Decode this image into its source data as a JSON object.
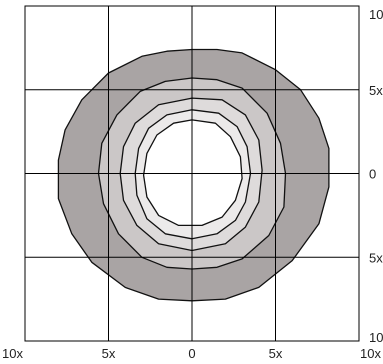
{
  "chart_data": {
    "type": "contour",
    "x_ticks": [
      "10x",
      "5x",
      "0",
      "5x",
      "10x"
    ],
    "y_ticks": [
      "10",
      "5x",
      "0",
      "5x",
      "10"
    ],
    "x_tick_values": [
      -10,
      -5,
      0,
      5,
      10
    ],
    "y_tick_values": [
      10,
      5,
      0,
      -5,
      -10
    ],
    "xlim": [
      -10,
      10
    ],
    "ylim": [
      -10,
      10
    ],
    "grid": true,
    "legend": "none",
    "contours": [
      {
        "level": 1,
        "fill": "#a9a4a4",
        "points": [
          [
            0,
            7.4
          ],
          [
            1.5,
            7.4
          ],
          [
            3,
            7.2
          ],
          [
            5,
            6.2
          ],
          [
            6.5,
            5.0
          ],
          [
            7.6,
            3.3
          ],
          [
            8.2,
            1.5
          ],
          [
            8.2,
            -0.8
          ],
          [
            7.6,
            -3.0
          ],
          [
            6.0,
            -5.2
          ],
          [
            4.0,
            -6.8
          ],
          [
            2.0,
            -7.5
          ],
          [
            0,
            -7.6
          ],
          [
            -2.0,
            -7.5
          ],
          [
            -4.0,
            -6.8
          ],
          [
            -6.0,
            -5.3
          ],
          [
            -7.2,
            -3.6
          ],
          [
            -8.0,
            -1.5
          ],
          [
            -8.0,
            0.8
          ],
          [
            -7.6,
            2.6
          ],
          [
            -6.6,
            4.4
          ],
          [
            -5.0,
            6.0
          ],
          [
            -3.0,
            7.0
          ],
          [
            -1.5,
            7.3
          ]
        ]
      },
      {
        "level": 2,
        "fill": "#cbc7c7",
        "points": [
          [
            0,
            5.7
          ],
          [
            1.5,
            5.6
          ],
          [
            3.0,
            5.1
          ],
          [
            4.5,
            3.6
          ],
          [
            5.3,
            1.8
          ],
          [
            5.6,
            0
          ],
          [
            5.5,
            -2.0
          ],
          [
            4.6,
            -3.7
          ],
          [
            3.0,
            -5.1
          ],
          [
            1.5,
            -5.6
          ],
          [
            0,
            -5.7
          ],
          [
            -1.5,
            -5.6
          ],
          [
            -3.0,
            -5.0
          ],
          [
            -4.4,
            -3.6
          ],
          [
            -5.3,
            -1.8
          ],
          [
            -5.6,
            0
          ],
          [
            -5.4,
            1.8
          ],
          [
            -4.5,
            3.5
          ],
          [
            -3.1,
            4.9
          ],
          [
            -1.6,
            5.5
          ]
        ]
      },
      {
        "level": 3,
        "fill": "#dedbdb",
        "points": [
          [
            0,
            4.5
          ],
          [
            1.8,
            4.4
          ],
          [
            3.2,
            3.5
          ],
          [
            4.0,
            2.0
          ],
          [
            4.2,
            0.2
          ],
          [
            4.0,
            -1.7
          ],
          [
            3.2,
            -3.2
          ],
          [
            2.0,
            -4.2
          ],
          [
            0,
            -4.6
          ],
          [
            -2.0,
            -4.2
          ],
          [
            -3.3,
            -3.1
          ],
          [
            -4.1,
            -1.6
          ],
          [
            -4.3,
            0
          ],
          [
            -4.1,
            1.6
          ],
          [
            -3.4,
            3.0
          ],
          [
            -2.0,
            4.1
          ]
        ]
      },
      {
        "level": 4,
        "fill": "#eceaea",
        "points": [
          [
            0,
            3.8
          ],
          [
            1.6,
            3.6
          ],
          [
            2.7,
            2.8
          ],
          [
            3.3,
            1.6
          ],
          [
            3.5,
            0
          ],
          [
            3.2,
            -1.7
          ],
          [
            2.6,
            -2.8
          ],
          [
            1.5,
            -3.6
          ],
          [
            0,
            -3.9
          ],
          [
            -1.6,
            -3.6
          ],
          [
            -2.7,
            -2.7
          ],
          [
            -3.3,
            -1.3
          ],
          [
            -3.4,
            0
          ],
          [
            -3.2,
            1.5
          ],
          [
            -2.6,
            2.7
          ],
          [
            -1.5,
            3.5
          ]
        ]
      },
      {
        "level": 5,
        "fill": "#ffffff",
        "points": [
          [
            0,
            3.2
          ],
          [
            1.4,
            3.0
          ],
          [
            2.3,
            2.2
          ],
          [
            2.9,
            1.0
          ],
          [
            3.0,
            -0.3
          ],
          [
            2.6,
            -1.6
          ],
          [
            1.8,
            -2.6
          ],
          [
            0.6,
            -3.1
          ],
          [
            -0.8,
            -3.1
          ],
          [
            -2.0,
            -2.5
          ],
          [
            -2.7,
            -1.4
          ],
          [
            -2.9,
            -0.1
          ],
          [
            -2.7,
            1.2
          ],
          [
            -2.1,
            2.3
          ],
          [
            -1.1,
            3.0
          ]
        ]
      }
    ]
  }
}
